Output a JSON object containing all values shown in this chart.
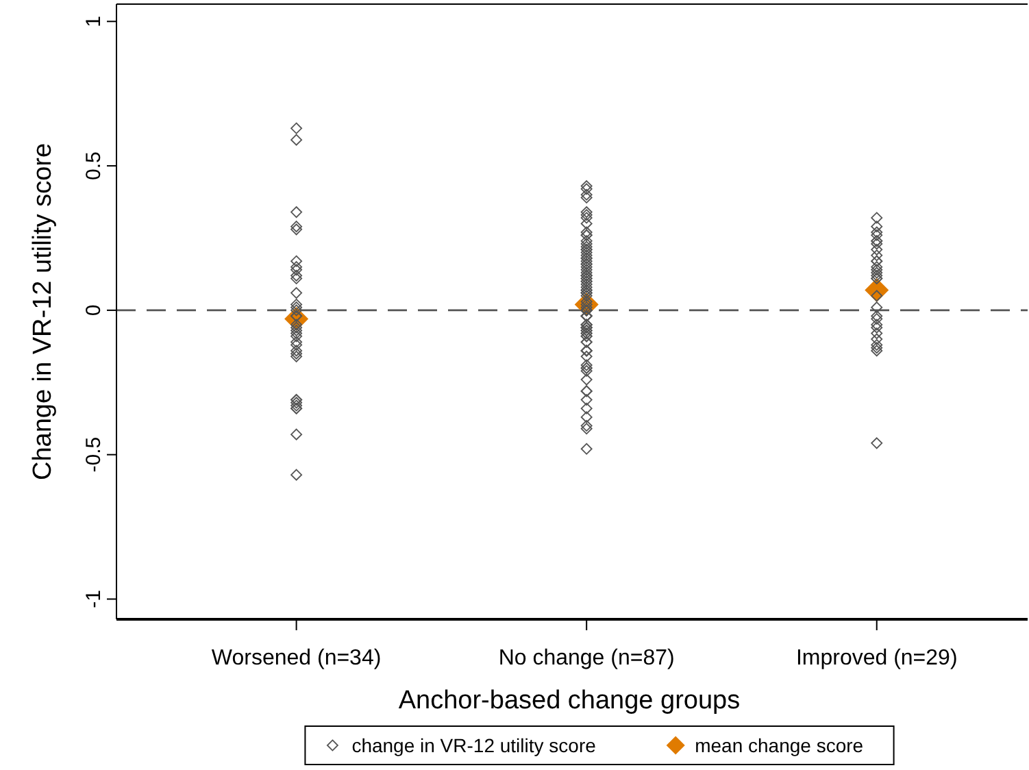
{
  "chart_data": {
    "type": "scatter",
    "xlabel": "Anchor-based change groups",
    "ylabel": "Change in VR-12 utility score",
    "categories": [
      "Worsened (n=34)",
      "No change (n=87)",
      "Improved (n=29)"
    ],
    "ylim": [
      -1.07,
      1.06
    ],
    "yticks": [
      -1,
      -0.5,
      0,
      0.5,
      1
    ],
    "grid": false,
    "legend": "bottom",
    "ref_lines": [
      {
        "axis": "y",
        "value": 0,
        "color": "#555555",
        "line_style": "dashed"
      }
    ],
    "series": [
      {
        "name": "change in VR-12 utility score",
        "color": "#555555",
        "marker": "diamond",
        "x": [
          "Worsened (n=34)",
          "Worsened (n=34)",
          "Worsened (n=34)",
          "Worsened (n=34)",
          "Worsened (n=34)",
          "Worsened (n=34)",
          "Worsened (n=34)",
          "Worsened (n=34)",
          "Worsened (n=34)",
          "Worsened (n=34)",
          "Worsened (n=34)",
          "Worsened (n=34)",
          "Worsened (n=34)",
          "Worsened (n=34)",
          "Worsened (n=34)",
          "Worsened (n=34)",
          "Worsened (n=34)",
          "Worsened (n=34)",
          "Worsened (n=34)",
          "Worsened (n=34)",
          "Worsened (n=34)",
          "Worsened (n=34)",
          "Worsened (n=34)",
          "Worsened (n=34)",
          "Worsened (n=34)",
          "Worsened (n=34)",
          "Worsened (n=34)",
          "Worsened (n=34)",
          "Worsened (n=34)",
          "Worsened (n=34)",
          "Worsened (n=34)",
          "Worsened (n=34)",
          "Worsened (n=34)",
          "Worsened (n=34)",
          "No change (n=87)",
          "No change (n=87)",
          "No change (n=87)",
          "No change (n=87)",
          "No change (n=87)",
          "No change (n=87)",
          "No change (n=87)",
          "No change (n=87)",
          "No change (n=87)",
          "No change (n=87)",
          "No change (n=87)",
          "No change (n=87)",
          "No change (n=87)",
          "No change (n=87)",
          "No change (n=87)",
          "No change (n=87)",
          "No change (n=87)",
          "No change (n=87)",
          "No change (n=87)",
          "No change (n=87)",
          "No change (n=87)",
          "No change (n=87)",
          "No change (n=87)",
          "No change (n=87)",
          "No change (n=87)",
          "No change (n=87)",
          "No change (n=87)",
          "No change (n=87)",
          "No change (n=87)",
          "No change (n=87)",
          "No change (n=87)",
          "No change (n=87)",
          "No change (n=87)",
          "No change (n=87)",
          "No change (n=87)",
          "No change (n=87)",
          "No change (n=87)",
          "No change (n=87)",
          "No change (n=87)",
          "No change (n=87)",
          "No change (n=87)",
          "No change (n=87)",
          "No change (n=87)",
          "No change (n=87)",
          "No change (n=87)",
          "No change (n=87)",
          "No change (n=87)",
          "No change (n=87)",
          "No change (n=87)",
          "No change (n=87)",
          "No change (n=87)",
          "No change (n=87)",
          "No change (n=87)",
          "No change (n=87)",
          "No change (n=87)",
          "No change (n=87)",
          "No change (n=87)",
          "No change (n=87)",
          "No change (n=87)",
          "No change (n=87)",
          "No change (n=87)",
          "No change (n=87)",
          "No change (n=87)",
          "No change (n=87)",
          "No change (n=87)",
          "No change (n=87)",
          "No change (n=87)",
          "No change (n=87)",
          "No change (n=87)",
          "No change (n=87)",
          "No change (n=87)",
          "No change (n=87)",
          "No change (n=87)",
          "No change (n=87)",
          "No change (n=87)",
          "No change (n=87)",
          "No change (n=87)",
          "No change (n=87)",
          "No change (n=87)",
          "No change (n=87)",
          "No change (n=87)",
          "No change (n=87)",
          "No change (n=87)",
          "No change (n=87)",
          "No change (n=87)",
          "No change (n=87)",
          "No change (n=87)",
          "Improved (n=29)",
          "Improved (n=29)",
          "Improved (n=29)",
          "Improved (n=29)",
          "Improved (n=29)",
          "Improved (n=29)",
          "Improved (n=29)",
          "Improved (n=29)",
          "Improved (n=29)",
          "Improved (n=29)",
          "Improved (n=29)",
          "Improved (n=29)",
          "Improved (n=29)",
          "Improved (n=29)",
          "Improved (n=29)",
          "Improved (n=29)",
          "Improved (n=29)",
          "Improved (n=29)",
          "Improved (n=29)",
          "Improved (n=29)",
          "Improved (n=29)",
          "Improved (n=29)",
          "Improved (n=29)",
          "Improved (n=29)",
          "Improved (n=29)",
          "Improved (n=29)",
          "Improved (n=29)",
          "Improved (n=29)",
          "Improved (n=29)"
        ],
        "values": [
          0.63,
          0.59,
          0.34,
          0.28,
          0.29,
          0.17,
          0.14,
          0.15,
          0.12,
          0.11,
          0.06,
          0.02,
          0.0,
          -0.02,
          0.01,
          -0.02,
          -0.05,
          -0.07,
          -0.08,
          -0.06,
          -0.09,
          -0.11,
          -0.12,
          -0.14,
          -0.15,
          -0.16,
          -0.33,
          -0.32,
          -0.31,
          -0.31,
          -0.34,
          -0.43,
          -0.57,
          -0.34,
          0.43,
          0.39,
          0.42,
          0.4,
          0.32,
          0.34,
          0.33,
          0.3,
          0.27,
          0.26,
          0.23,
          0.26,
          0.24,
          0.22,
          0.21,
          0.2,
          0.19,
          0.18,
          0.18,
          0.17,
          0.15,
          0.16,
          0.14,
          0.12,
          0.11,
          0.1,
          0.12,
          0.11,
          0.1,
          0.09,
          0.08,
          0.06,
          0.07,
          0.06,
          0.07,
          0.06,
          0.05,
          0.03,
          0.02,
          0.0,
          0.01,
          0.0,
          -0.02,
          0.0,
          0.0,
          0.0,
          -0.02,
          -0.02,
          -0.02,
          -0.05,
          -0.05,
          -0.06,
          -0.06,
          -0.06,
          -0.05,
          -0.07,
          -0.07,
          -0.08,
          -0.08,
          -0.09,
          -0.09,
          -0.11,
          -0.11,
          -0.14,
          -0.14,
          -0.14,
          -0.16,
          -0.19,
          -0.2,
          -0.2,
          -0.21,
          -0.24,
          -0.28,
          -0.28,
          -0.31,
          -0.34,
          -0.37,
          -0.4,
          -0.41,
          -0.48,
          0.13,
          0.12,
          0.0,
          0.0,
          0.16,
          -0.06,
          0.21,
          0.32,
          0.29,
          0.27,
          0.26,
          0.24,
          0.21,
          0.23,
          0.24,
          0.19,
          0.17,
          0.14,
          0.17,
          0.15,
          0.13,
          0.12,
          0.11,
          0.11,
          0.05,
          0.01,
          -0.02,
          -0.03,
          -0.06,
          -0.05,
          -0.08,
          -0.1,
          -0.12,
          -0.13,
          -0.14,
          -0.46
        ]
      },
      {
        "name": "mean change score",
        "color": "#e07b00",
        "marker": "diamond",
        "x": [
          "Worsened (n=34)",
          "No change (n=87)",
          "Improved (n=29)"
        ],
        "values": [
          -0.03,
          0.02,
          0.07
        ]
      }
    ]
  }
}
